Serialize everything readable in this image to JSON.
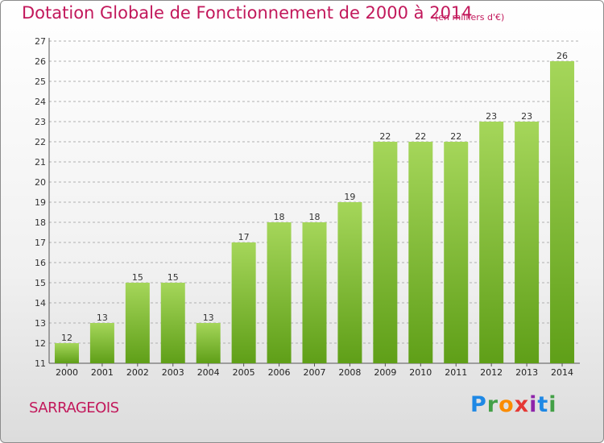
{
  "title": "Dotation Globale de Fonctionnement de 2000 à 2014",
  "subtitle": "(en milliers d'€)",
  "commune": "SARRAGEOIS",
  "logo": {
    "letters": [
      "P",
      "r",
      "o",
      "x",
      "i",
      "t",
      "i"
    ],
    "colors": [
      "#1e88e5",
      "#43a047",
      "#fb8c00",
      "#e53935",
      "#8e24aa",
      "#1e88e5",
      "#43a047"
    ]
  },
  "colors": {
    "accent": "#c2185b",
    "bar_top": "#a5d65a",
    "bar_bottom": "#5f9f18",
    "grid": "#b0b0b0"
  },
  "chart_data": {
    "type": "bar",
    "categories": [
      "2000",
      "2001",
      "2002",
      "2003",
      "2004",
      "2005",
      "2006",
      "2007",
      "2008",
      "2009",
      "2010",
      "2011",
      "2012",
      "2013",
      "2014"
    ],
    "values": [
      12,
      13,
      15,
      15,
      13,
      17,
      18,
      18,
      19,
      22,
      22,
      22,
      23,
      23,
      26
    ],
    "ylim": [
      11,
      27
    ],
    "yticks": [
      11,
      12,
      13,
      14,
      15,
      16,
      17,
      18,
      19,
      20,
      21,
      22,
      23,
      24,
      25,
      26,
      27
    ],
    "grid": true,
    "grid_style": "dashed-horizontal"
  }
}
